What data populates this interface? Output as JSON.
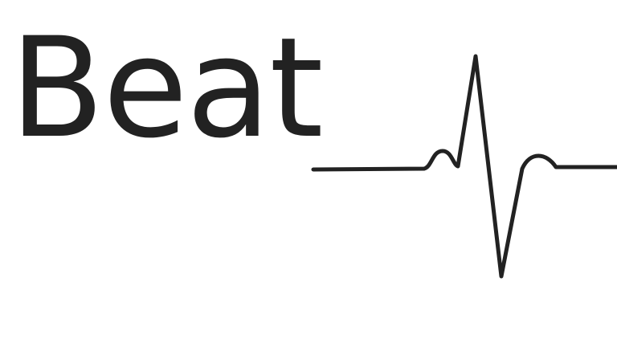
{
  "title": "Beat",
  "colors": {
    "text": "#222222",
    "line": "#222222",
    "background": "#ffffff"
  },
  "icon": "heartbeat-pulse-line-icon"
}
